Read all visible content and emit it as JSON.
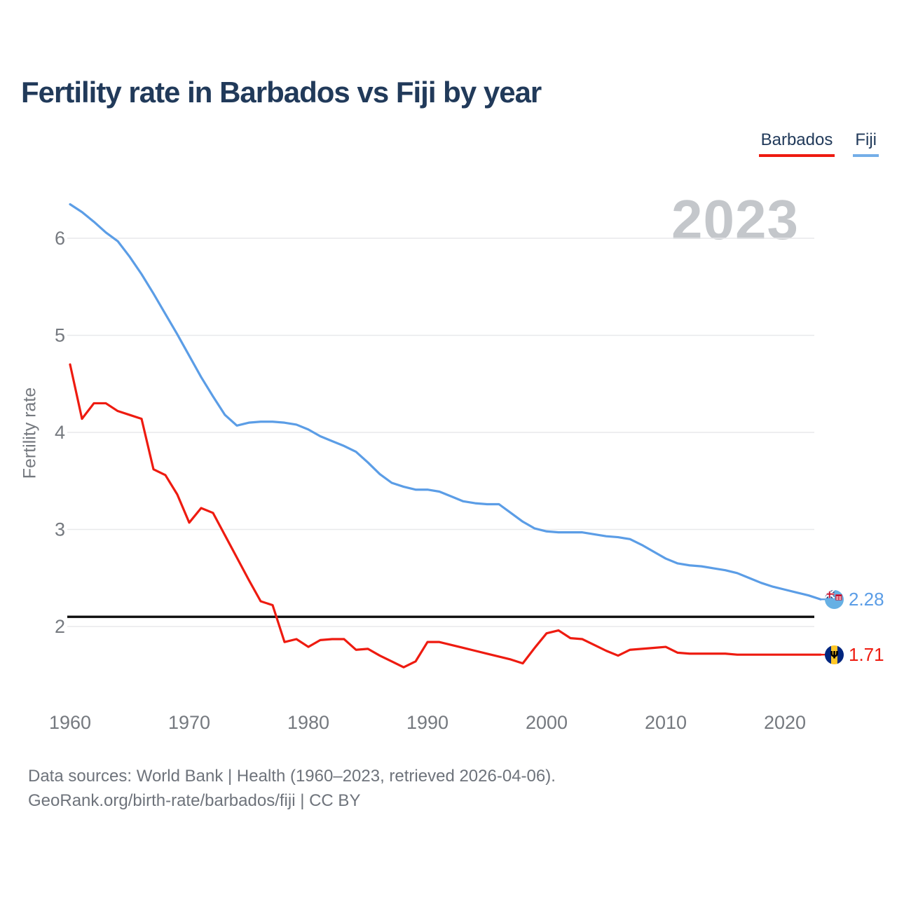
{
  "title": "Fertility rate in Barbados vs Fiji by year",
  "watermark": "2023",
  "legend": {
    "items": [
      {
        "label": "Barbados",
        "color": "#ee1b10"
      },
      {
        "label": "Fiji",
        "color": "#74aee8"
      }
    ]
  },
  "chart_data": {
    "type": "line",
    "title": "Fertility rate in Barbados vs Fiji by year",
    "xlabel": "",
    "ylabel": "Fertility rate",
    "x_ticks": [
      1960,
      1970,
      1980,
      1990,
      2000,
      2010,
      2020
    ],
    "y_ticks": [
      2,
      3,
      4,
      5,
      6
    ],
    "xlim": [
      1959,
      2024
    ],
    "ylim": [
      1.4,
      6.45
    ],
    "grid": "horizontal",
    "legend_position": "top-right",
    "replacement_line": 2.1,
    "x": [
      1960,
      1961,
      1962,
      1963,
      1964,
      1965,
      1966,
      1967,
      1968,
      1969,
      1970,
      1971,
      1972,
      1973,
      1974,
      1975,
      1976,
      1977,
      1978,
      1979,
      1980,
      1981,
      1982,
      1983,
      1984,
      1985,
      1986,
      1987,
      1988,
      1989,
      1990,
      1991,
      1992,
      1993,
      1994,
      1995,
      1996,
      1997,
      1998,
      1999,
      2000,
      2001,
      2002,
      2003,
      2004,
      2005,
      2006,
      2007,
      2008,
      2009,
      2010,
      2011,
      2012,
      2013,
      2014,
      2015,
      2016,
      2017,
      2018,
      2019,
      2020,
      2021,
      2022,
      2023
    ],
    "series": [
      {
        "name": "Fiji",
        "color": "#5b9de6",
        "end_label": "2.28",
        "values": [
          6.35,
          6.27,
          6.17,
          6.06,
          5.97,
          5.81,
          5.63,
          5.43,
          5.22,
          5.01,
          4.79,
          4.57,
          4.37,
          4.18,
          4.07,
          4.1,
          4.11,
          4.11,
          4.1,
          4.08,
          4.03,
          3.96,
          3.91,
          3.86,
          3.8,
          3.69,
          3.57,
          3.48,
          3.44,
          3.41,
          3.41,
          3.39,
          3.34,
          3.29,
          3.27,
          3.26,
          3.26,
          3.17,
          3.08,
          3.01,
          2.98,
          2.97,
          2.97,
          2.97,
          2.95,
          2.93,
          2.92,
          2.9,
          2.84,
          2.77,
          2.7,
          2.65,
          2.63,
          2.62,
          2.6,
          2.58,
          2.55,
          2.5,
          2.45,
          2.41,
          2.38,
          2.35,
          2.32,
          2.28
        ]
      },
      {
        "name": "Barbados",
        "color": "#ee1b10",
        "end_label": "1.71",
        "values": [
          4.7,
          4.14,
          4.3,
          4.3,
          4.22,
          4.18,
          4.14,
          3.62,
          3.56,
          3.36,
          3.07,
          3.22,
          3.17,
          2.94,
          2.71,
          2.48,
          2.26,
          2.22,
          1.84,
          1.87,
          1.79,
          1.86,
          1.87,
          1.87,
          1.76,
          1.77,
          1.7,
          1.64,
          1.58,
          1.64,
          1.84,
          1.84,
          1.81,
          1.78,
          1.75,
          1.72,
          1.69,
          1.66,
          1.62,
          1.78,
          1.93,
          1.96,
          1.88,
          1.87,
          1.81,
          1.75,
          1.7,
          1.76,
          1.77,
          1.78,
          1.79,
          1.73,
          1.72,
          1.72,
          1.72,
          1.72,
          1.71,
          1.71,
          1.71,
          1.71,
          1.71,
          1.71,
          1.71,
          1.71
        ]
      }
    ]
  },
  "footer": {
    "line1": "Data sources: World Bank | Health (1960–2023, retrieved 2026-04-06).",
    "line2": "GeoRank.org/birth-rate/barbados/fiji | CC BY"
  }
}
